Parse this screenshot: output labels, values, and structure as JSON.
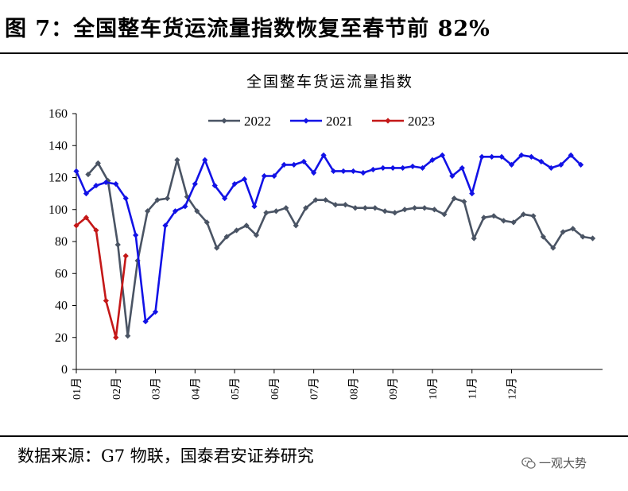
{
  "header": {
    "title": "图 7：全国整车货运流量指数恢复至春节前 82%"
  },
  "footer": {
    "source": "数据来源：G7 物联，国泰君安证券研究",
    "watermark": "一观大势"
  },
  "colors": {
    "s2022": "#4a5464",
    "s2021": "#1212e6",
    "s2023": "#c41818"
  },
  "chart_data": {
    "type": "line",
    "title": "全国整车货运流量指数",
    "xlabel": "",
    "ylabel": "",
    "ylim": [
      0,
      160
    ],
    "yticks": [
      0,
      20,
      40,
      60,
      80,
      100,
      120,
      140,
      160
    ],
    "x_tick_labels": [
      "01月",
      "02月",
      "03月",
      "04月",
      "05月",
      "06月",
      "07月",
      "08月",
      "09月",
      "10月",
      "11月",
      "12月"
    ],
    "x_unit": "week",
    "legend_position": "top-center",
    "series": [
      {
        "name": "2022",
        "color": "#4a5464",
        "x": [
          0.3,
          0.55,
          0.8,
          1.05,
          1.3,
          1.55,
          1.8,
          2.05,
          2.3,
          2.55,
          2.8,
          3.05,
          3.3,
          3.55,
          3.8,
          4.05,
          4.3,
          4.55,
          4.8,
          5.05,
          5.3,
          5.55,
          5.8,
          6.05,
          6.3,
          6.55,
          6.8,
          7.05,
          7.3,
          7.55,
          7.8,
          8.05,
          8.3,
          8.55,
          8.8,
          9.05,
          9.3,
          9.55,
          9.8,
          10.05,
          10.3,
          10.55,
          10.8,
          11.05,
          11.3,
          11.55,
          11.8,
          12.05,
          12.3,
          12.55,
          12.8,
          13.05
        ],
        "y": [
          122,
          129,
          118,
          78,
          21,
          68,
          99,
          106,
          107,
          131,
          108,
          99,
          92,
          76,
          83,
          87,
          90,
          84,
          98,
          99,
          101,
          90,
          101,
          106,
          106,
          103,
          103,
          101,
          101,
          101,
          99,
          98,
          100,
          101,
          101,
          100,
          97,
          107,
          105,
          82,
          95,
          96,
          93,
          92,
          97,
          96,
          83,
          76,
          86,
          88,
          83,
          82
        ]
      },
      {
        "name": "2021",
        "color": "#1212e6",
        "x": [
          0,
          0.25,
          0.5,
          0.75,
          1,
          1.25,
          1.5,
          1.75,
          2,
          2.25,
          2.5,
          2.75,
          3,
          3.25,
          3.5,
          3.75,
          4,
          4.25,
          4.5,
          4.75,
          5,
          5.25,
          5.5,
          5.75,
          6,
          6.25,
          6.5,
          6.75,
          7,
          7.25,
          7.5,
          7.75,
          8,
          8.25,
          8.5,
          8.75,
          9,
          9.25,
          9.5,
          9.75,
          10,
          10.25,
          10.5,
          10.75,
          11,
          11.25,
          11.5,
          11.75,
          12,
          12.25,
          12.5,
          12.75
        ],
        "y": [
          124,
          110,
          115,
          117,
          116,
          107,
          84,
          30,
          36,
          90,
          99,
          102,
          116,
          131,
          115,
          107,
          116,
          119,
          102,
          121,
          121,
          128,
          128,
          130,
          123,
          134,
          124,
          124,
          124,
          123,
          125,
          126,
          126,
          126,
          127,
          126,
          131,
          134,
          121,
          126,
          110,
          133,
          133,
          133,
          128,
          134,
          133,
          130,
          126,
          128,
          134,
          128
        ]
      },
      {
        "name": "2023",
        "color": "#c41818",
        "x": [
          0,
          0.25,
          0.5,
          0.75,
          1,
          1.25
        ],
        "y": [
          90,
          95,
          87,
          43,
          20,
          71
        ]
      }
    ]
  }
}
